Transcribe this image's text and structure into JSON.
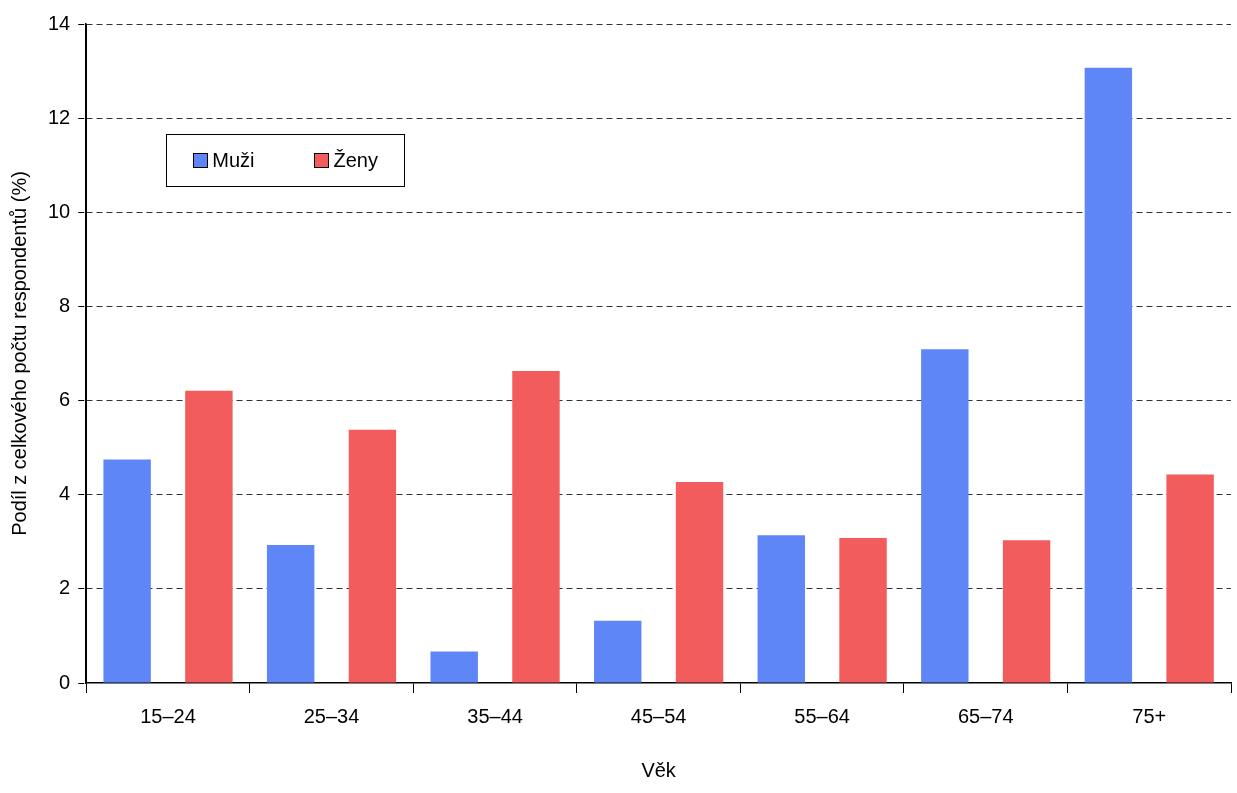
{
  "chart_data": {
    "type": "bar",
    "xlabel": "Věk",
    "ylabel": "Podíl z celkového počtu respondentů (%)",
    "categories": [
      "15–24",
      "25–34",
      "35–44",
      "45–54",
      "55–64",
      "65–74",
      "75+"
    ],
    "series": [
      {
        "name": "Muži",
        "color": "#5f86f7",
        "values": [
          4.75,
          2.93,
          0.67,
          1.32,
          3.14,
          7.09,
          13.07
        ]
      },
      {
        "name": "Ženy",
        "color": "#f25c5c",
        "values": [
          6.21,
          5.38,
          6.63,
          4.27,
          3.08,
          3.03,
          4.43
        ]
      }
    ],
    "ylim": [
      0,
      14
    ],
    "yticks": [
      0,
      2,
      4,
      6,
      8,
      10,
      12,
      14
    ],
    "grid": "y",
    "legend": "top left"
  }
}
